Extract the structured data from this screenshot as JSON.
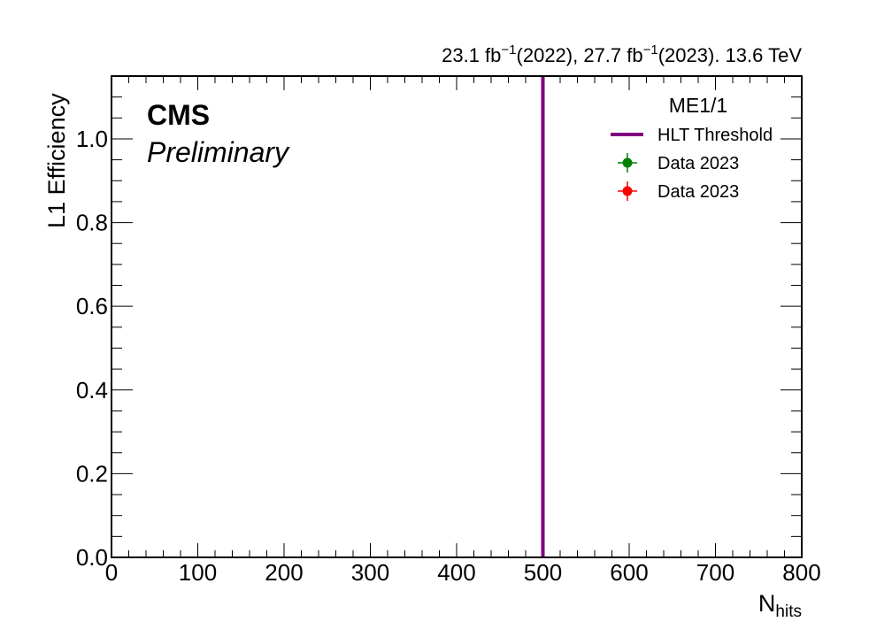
{
  "chart_data": {
    "type": "line",
    "lumi_label": {
      "a_val": "23.1 fb",
      "a_exp": "−1",
      "a_year": "(2022), 27.7 fb",
      "b_exp": "−1",
      "b_rest": "(2023). 13.6 TeV"
    },
    "experiment_label": "CMS",
    "status_label": "Preliminary",
    "ylabel": "L1 Efficiency",
    "xlabel_main": "N",
    "xlabel_sub": "hits",
    "xlim": [
      0,
      800
    ],
    "ylim": [
      0,
      1.15
    ],
    "x_major_ticks": [
      0,
      100,
      200,
      300,
      400,
      500,
      600,
      700,
      800
    ],
    "x_minor_step": 20,
    "y_major_ticks": [
      0.0,
      0.2,
      0.4,
      0.6,
      0.8,
      1.0
    ],
    "y_minor_step": 0.05,
    "grid": false,
    "legend": {
      "position": "top-right",
      "title": "ME1/1",
      "entries": [
        {
          "label": "HLT Threshold",
          "kind": "line",
          "color": "#800080"
        },
        {
          "label": "Data 2023",
          "kind": "marker",
          "color": "#008000"
        },
        {
          "label": "Data 2023",
          "kind": "marker",
          "color": "#ff0000"
        }
      ]
    },
    "series": [
      {
        "name": "HLT Threshold",
        "kind": "vline",
        "x": 500,
        "color": "#800080"
      },
      {
        "name": "Data 2023",
        "kind": "points",
        "color": "#008000",
        "x": [],
        "y": []
      },
      {
        "name": "Data 2023",
        "kind": "points",
        "color": "#ff0000",
        "x": [],
        "y": []
      }
    ]
  }
}
